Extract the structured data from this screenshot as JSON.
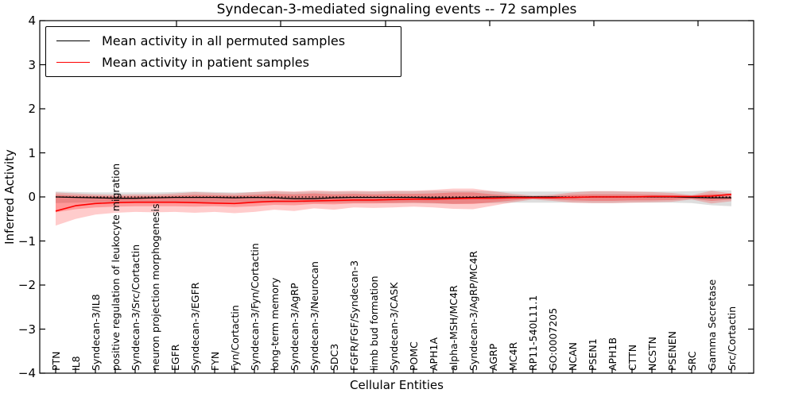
{
  "chart_data": {
    "type": "line",
    "title": "Syndecan-3-mediated signaling events -- 72 samples",
    "xlabel": "Cellular Entities",
    "ylabel": "Inferred Activity",
    "ylim": [
      -4,
      4
    ],
    "yticks": [
      4,
      3,
      2,
      1,
      0,
      -1,
      -2,
      -3,
      -4
    ],
    "reference_line_y": 0,
    "grid": false,
    "legend_position": "upper left",
    "categories": [
      "PTN",
      "IL8",
      "Syndecan-3/IL8",
      "positive regulation of leukocyte migration",
      "Syndecan-3/Src/Cortactin",
      "neuron projection morphogenesis",
      "EGFR",
      "Syndecan-3/EGFR",
      "FYN",
      "Fyn/Cortactin",
      "Syndecan-3/Fyn/Cortactin",
      "long-term memory",
      "Syndecan-3/AgRP",
      "Syndecan-3/Neurocan",
      "SDC3",
      "FGFR/FGF/Syndecan-3",
      "limb bud formation",
      "Syndecan-3/CASK",
      "POMC",
      "APH1A",
      "alpha-MSH/MC4R",
      "Syndecan-3/AgRP/MC4R",
      "AGRP",
      "MC4R",
      "RP11-540L11.1",
      "GO:0007205",
      "NCAN",
      "PSEN1",
      "APH1B",
      "CTTN",
      "NCSTN",
      "PSENEN",
      "SRC",
      "Gamma Secretase",
      "Src/Cortactin"
    ],
    "series": [
      {
        "name": "Mean activity in all permuted samples",
        "color": "#000000",
        "width": 1.3,
        "values": [
          0,
          -0.01,
          -0.02,
          -0.03,
          -0.03,
          -0.02,
          -0.01,
          -0.01,
          -0.01,
          -0.02,
          -0.01,
          -0.02,
          -0.04,
          -0.04,
          -0.02,
          -0.01,
          -0.01,
          -0.01,
          -0.01,
          -0.02,
          -0.02,
          -0.01,
          0,
          0,
          0,
          0,
          -0.01,
          0,
          0,
          0,
          0,
          0,
          -0.01,
          -0.02,
          -0.02
        ]
      },
      {
        "name": "Mean activity in patient samples",
        "color": "#ff0000",
        "width": 1.6,
        "values": [
          -0.32,
          -0.2,
          -0.15,
          -0.13,
          -0.12,
          -0.12,
          -0.12,
          -0.13,
          -0.14,
          -0.15,
          -0.12,
          -0.1,
          -0.1,
          -0.09,
          -0.08,
          -0.07,
          -0.07,
          -0.06,
          -0.05,
          -0.05,
          -0.04,
          -0.03,
          -0.03,
          -0.02,
          -0.02,
          -0.02,
          -0.01,
          0.0,
          0.0,
          0.0,
          0.01,
          0.01,
          0.01,
          0.02,
          0.06
        ]
      }
    ],
    "bands": [
      {
        "name": "permuted-std-band",
        "color": "#000000",
        "opacity": 0.13,
        "upper": [
          0.12,
          0.11,
          0.1,
          0.1,
          0.1,
          0.1,
          0.11,
          0.12,
          0.11,
          0.1,
          0.11,
          0.12,
          0.11,
          0.12,
          0.12,
          0.12,
          0.12,
          0.13,
          0.13,
          0.14,
          0.14,
          0.14,
          0.13,
          0.12,
          0.12,
          0.12,
          0.12,
          0.13,
          0.13,
          0.12,
          0.12,
          0.12,
          0.13,
          0.15,
          0.15
        ],
        "lower": [
          -0.14,
          -0.13,
          -0.12,
          -0.12,
          -0.12,
          -0.12,
          -0.12,
          -0.13,
          -0.12,
          -0.12,
          -0.12,
          -0.13,
          -0.13,
          -0.13,
          -0.13,
          -0.13,
          -0.13,
          -0.14,
          -0.14,
          -0.15,
          -0.16,
          -0.15,
          -0.14,
          -0.13,
          -0.13,
          -0.13,
          -0.13,
          -0.14,
          -0.14,
          -0.13,
          -0.13,
          -0.13,
          -0.14,
          -0.19,
          -0.21
        ]
      },
      {
        "name": "patient-std-band-outer",
        "color": "#ff0000",
        "opacity": 0.2,
        "upper": [
          0.1,
          0.08,
          0.06,
          0.05,
          0.06,
          0.06,
          0.08,
          0.11,
          0.09,
          0.08,
          0.11,
          0.14,
          0.12,
          0.15,
          0.13,
          0.14,
          0.13,
          0.14,
          0.14,
          0.16,
          0.19,
          0.19,
          0.13,
          0.07,
          0.03,
          0.05,
          0.1,
          0.13,
          0.13,
          0.12,
          0.11,
          0.09,
          0.04,
          0.14,
          0.08
        ],
        "lower": [
          -0.65,
          -0.5,
          -0.4,
          -0.36,
          -0.34,
          -0.35,
          -0.34,
          -0.36,
          -0.34,
          -0.37,
          -0.34,
          -0.29,
          -0.32,
          -0.26,
          -0.29,
          -0.24,
          -0.25,
          -0.24,
          -0.22,
          -0.24,
          -0.27,
          -0.28,
          -0.2,
          -0.12,
          -0.06,
          -0.09,
          -0.13,
          -0.14,
          -0.14,
          -0.13,
          -0.12,
          -0.11,
          -0.06,
          -0.15,
          -0.1
        ]
      },
      {
        "name": "patient-std-band-inner",
        "color": "#ff0000",
        "opacity": 0.25,
        "upper": [
          0.05,
          0.03,
          0.02,
          0.01,
          0.02,
          0.02,
          0.03,
          0.05,
          0.04,
          0.03,
          0.05,
          0.07,
          0.06,
          0.08,
          0.06,
          0.07,
          0.06,
          0.07,
          0.07,
          0.08,
          0.1,
          0.1,
          0.06,
          0.03,
          0.01,
          0.02,
          0.05,
          0.06,
          0.06,
          0.06,
          0.05,
          0.04,
          0.02,
          0.07,
          0.04
        ],
        "lower": [
          -0.35,
          -0.28,
          -0.24,
          -0.22,
          -0.21,
          -0.21,
          -0.21,
          -0.22,
          -0.21,
          -0.23,
          -0.21,
          -0.18,
          -0.19,
          -0.16,
          -0.17,
          -0.15,
          -0.15,
          -0.14,
          -0.13,
          -0.14,
          -0.16,
          -0.16,
          -0.12,
          -0.08,
          -0.04,
          -0.06,
          -0.08,
          -0.09,
          -0.09,
          -0.08,
          -0.08,
          -0.07,
          -0.04,
          -0.09,
          -0.06
        ]
      }
    ],
    "legend": {
      "entries": [
        {
          "label": "Mean activity in all permuted samples",
          "color": "#000000"
        },
        {
          "label": "Mean activity in patient samples",
          "color": "#ff0000"
        }
      ]
    }
  }
}
